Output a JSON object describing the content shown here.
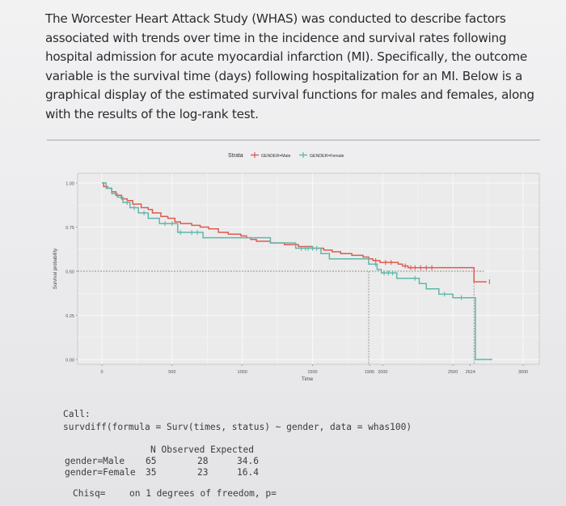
{
  "question": {
    "lines": [
      "The Worcester Heart Attack Study (WHAS) was conducted to describe factors",
      "associated with trends over time in the incidence and survival rates following",
      "hospital admission for acute myocardial infarction (MI). Specifically, the outcome",
      "variable is the survival time (days) following hospitalization for an MI. Below is a",
      "graphical display of the estimated survival functions for males and females, along",
      "with the results of the log-rank test."
    ]
  },
  "chart_data": {
    "type": "line",
    "step": true,
    "legend_title": "Strata",
    "legend_position": "top",
    "xlabel": "Time",
    "ylabel": "Survival probability",
    "xlim": [
      0,
      3000
    ],
    "ylim": [
      0,
      1
    ],
    "x_ticks": [
      "0",
      "500",
      "1000",
      "1500",
      "1906",
      "2000",
      "2500",
      "2624",
      "3000"
    ],
    "y_ticks": [
      "0.00",
      "0.25",
      "0.50",
      "0.75",
      "1.00"
    ],
    "grid": true,
    "series": [
      {
        "name": "GENDER=Male",
        "color": "#e05a4d",
        "x": [
          0,
          12,
          40,
          70,
          100,
          140,
          180,
          220,
          280,
          330,
          360,
          420,
          470,
          520,
          560,
          640,
          700,
          760,
          830,
          900,
          990,
          1030,
          1060,
          1100,
          1200,
          1300,
          1400,
          1500,
          1580,
          1640,
          1700,
          1780,
          1860,
          1900,
          1930,
          1980,
          2050,
          2110,
          2140,
          2180,
          2260,
          2340,
          2400,
          2500,
          2560,
          2650,
          2700,
          2740
        ],
        "y": [
          1.0,
          0.98,
          0.97,
          0.95,
          0.93,
          0.91,
          0.9,
          0.88,
          0.86,
          0.85,
          0.83,
          0.81,
          0.8,
          0.78,
          0.77,
          0.76,
          0.75,
          0.74,
          0.72,
          0.71,
          0.7,
          0.69,
          0.68,
          0.67,
          0.66,
          0.65,
          0.64,
          0.63,
          0.62,
          0.61,
          0.6,
          0.59,
          0.58,
          0.57,
          0.56,
          0.55,
          0.55,
          0.54,
          0.53,
          0.52,
          0.52,
          0.52,
          0.52,
          0.52,
          0.52,
          0.44,
          0.44,
          0.44
        ],
        "censor_x": [
          1950,
          2020,
          2060,
          2160,
          2200,
          2230,
          2270,
          2310,
          2350,
          2760
        ]
      },
      {
        "name": "GENDER=Female",
        "color": "#5fb7aa",
        "x": [
          0,
          30,
          70,
          110,
          150,
          200,
          260,
          330,
          410,
          540,
          720,
          1080,
          1200,
          1380,
          1560,
          1620,
          1880,
          1900,
          1960,
          1990,
          2050,
          2100,
          2260,
          2310,
          2400,
          2500,
          2650,
          2660,
          2780
        ],
        "y": [
          1.0,
          0.97,
          0.94,
          0.92,
          0.89,
          0.86,
          0.83,
          0.8,
          0.77,
          0.72,
          0.69,
          0.69,
          0.66,
          0.63,
          0.6,
          0.57,
          0.57,
          0.54,
          0.51,
          0.49,
          0.49,
          0.46,
          0.43,
          0.4,
          0.37,
          0.35,
          0.35,
          0.0,
          0.0
        ],
        "censor_x": [
          180,
          230,
          300,
          450,
          500,
          560,
          640,
          680,
          1420,
          1450,
          1470,
          1500,
          1530,
          1950,
          2010,
          2040,
          2070,
          2230,
          2440,
          2560
        ]
      }
    ]
  },
  "console": {
    "call_label": "Call:",
    "call_text": "survdiff(formula = Surv(times, status) ~ gender, data = whas100)",
    "table_header": "N Observed Expected",
    "rows": [
      {
        "label": "gender=Male",
        "n": "65",
        "observed": "28",
        "expected": "34.6"
      },
      {
        "label": "gender=Female",
        "n": "35",
        "observed": "23",
        "expected": "16.4"
      }
    ],
    "chisq_label": "Chisq=",
    "chisq_text": "on 1 degrees of freedom, p="
  }
}
